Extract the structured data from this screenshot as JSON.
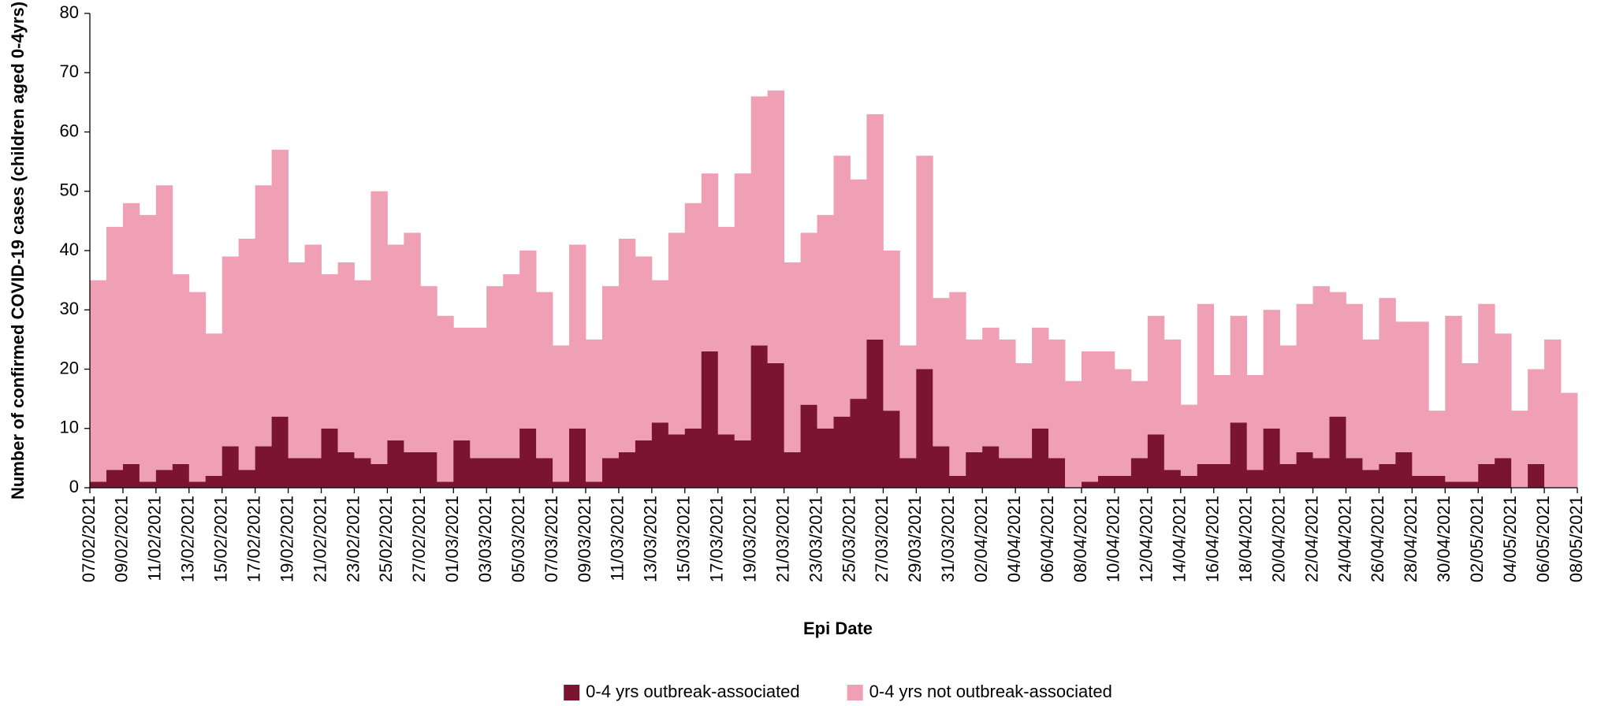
{
  "chart_data": {
    "type": "stacked_bar",
    "x_label": "Epi Date",
    "y_label": "Number of confirmed COVID-19 cases (children aged 0-4yrs)",
    "categories": [
      "07/02/2021",
      null,
      "09/02/2021",
      null,
      "11/02/2021",
      null,
      "13/02/2021",
      null,
      "15/02/2021",
      null,
      "17/02/2021",
      null,
      "19/02/2021",
      null,
      "21/02/2021",
      null,
      "23/02/2021",
      null,
      "25/02/2021",
      null,
      "27/02/2021",
      null,
      "01/03/2021",
      null,
      "03/03/2021",
      null,
      "05/03/2021",
      null,
      "07/03/2021",
      null,
      "09/03/2021",
      null,
      "11/03/2021",
      null,
      "13/03/2021",
      null,
      "15/03/2021",
      null,
      "17/03/2021",
      null,
      "19/03/2021",
      null,
      "21/03/2021",
      null,
      "23/03/2021",
      null,
      "25/03/2021",
      null,
      "27/03/2021",
      null,
      "29/03/2021",
      null,
      "31/03/2021",
      null,
      "02/04/2021",
      null,
      "04/04/2021",
      null,
      "06/04/2021",
      null,
      "08/04/2021",
      null,
      "10/04/2021",
      null,
      "12/04/2021",
      null,
      "14/04/2021",
      null,
      "16/04/2021",
      null,
      "18/04/2021",
      null,
      "20/04/2021",
      null,
      "22/04/2021",
      null,
      "24/04/2021",
      null,
      "26/04/2021",
      null,
      "28/04/2021",
      null,
      "30/04/2021",
      null,
      "02/05/2021",
      null,
      "04/05/2021",
      null,
      "06/05/2021",
      null,
      "08/05/2021"
    ],
    "series": [
      {
        "name": "0-4 yrs outbreak-associated",
        "color": "#7a1430",
        "values": [
          1,
          3,
          4,
          1,
          3,
          4,
          1,
          2,
          7,
          3,
          7,
          12,
          5,
          5,
          10,
          6,
          5,
          4,
          8,
          6,
          6,
          1,
          8,
          5,
          5,
          5,
          10,
          5,
          1,
          10,
          1,
          5,
          6,
          8,
          11,
          9,
          10,
          23,
          9,
          8,
          24,
          21,
          6,
          14,
          10,
          12,
          15,
          25,
          13,
          5,
          20,
          7,
          2,
          6,
          7,
          5,
          5,
          10,
          5,
          0,
          1,
          2,
          2,
          5,
          9,
          3,
          2,
          4,
          4,
          11,
          3,
          10,
          4,
          6,
          5,
          12,
          5,
          3,
          4,
          6,
          2,
          2,
          1,
          1,
          4,
          5,
          0,
          4,
          0,
          0,
          null
        ]
      },
      {
        "name": "0-4 yrs not outbreak-associated",
        "color": "#efa0b4",
        "values": [
          34,
          41,
          44,
          45,
          48,
          32,
          32,
          24,
          32,
          39,
          44,
          45,
          33,
          36,
          26,
          32,
          30,
          46,
          33,
          37,
          28,
          28,
          19,
          22,
          29,
          31,
          30,
          28,
          23,
          31,
          24,
          29,
          36,
          31,
          24,
          34,
          38,
          30,
          35,
          45,
          42,
          46,
          32,
          29,
          36,
          44,
          37,
          38,
          27,
          19,
          36,
          25,
          31,
          19,
          20,
          20,
          16,
          17,
          20,
          18,
          22,
          21,
          18,
          13,
          20,
          22,
          12,
          27,
          15,
          18,
          16,
          20,
          20,
          25,
          29,
          21,
          26,
          22,
          28,
          22,
          26,
          11,
          28,
          20,
          27,
          21,
          13,
          16,
          25,
          16,
          null
        ]
      }
    ],
    "ylim": [
      0,
      80
    ],
    "yticks": [
      0,
      10,
      20,
      30,
      40,
      50,
      60,
      70,
      80
    ],
    "grid": false,
    "legend": "bottom"
  }
}
